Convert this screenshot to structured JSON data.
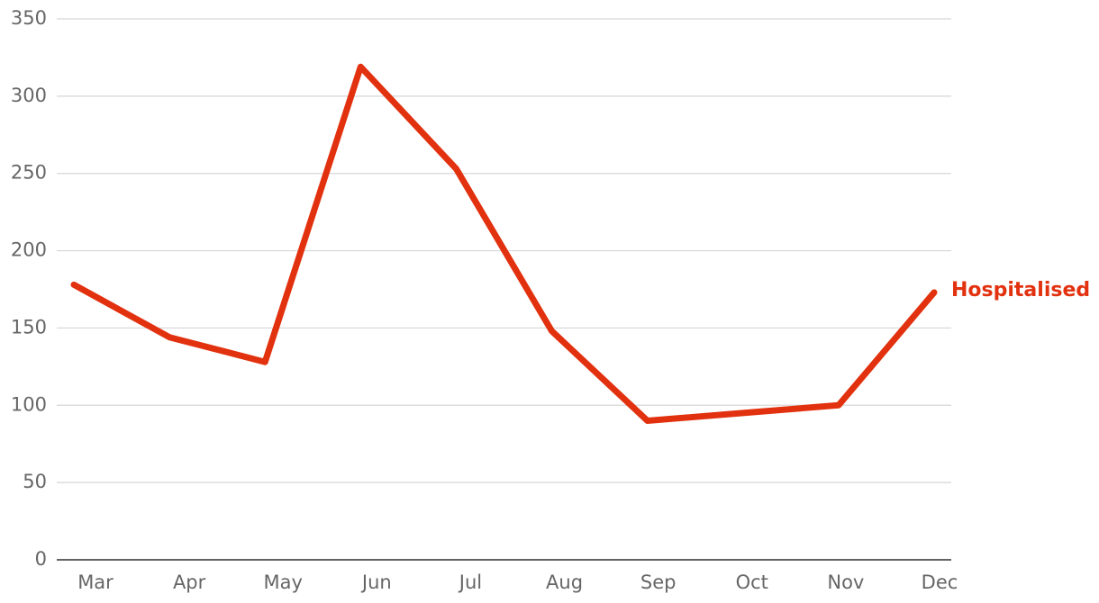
{
  "chart_data": {
    "type": "line",
    "categories": [
      "Mar",
      "Apr",
      "May",
      "Jun",
      "Jul",
      "Aug",
      "Sep",
      "Oct",
      "Nov",
      "Dec"
    ],
    "series": [
      {
        "name": "Hospitalised",
        "color": "#e2310f",
        "values": [
          178,
          144,
          128,
          319,
          253,
          148,
          90,
          95,
          100,
          173
        ]
      }
    ],
    "ylim": [
      0,
      350
    ],
    "yticks": [
      0,
      50,
      100,
      150,
      200,
      250,
      300,
      350
    ],
    "grid": true
  }
}
